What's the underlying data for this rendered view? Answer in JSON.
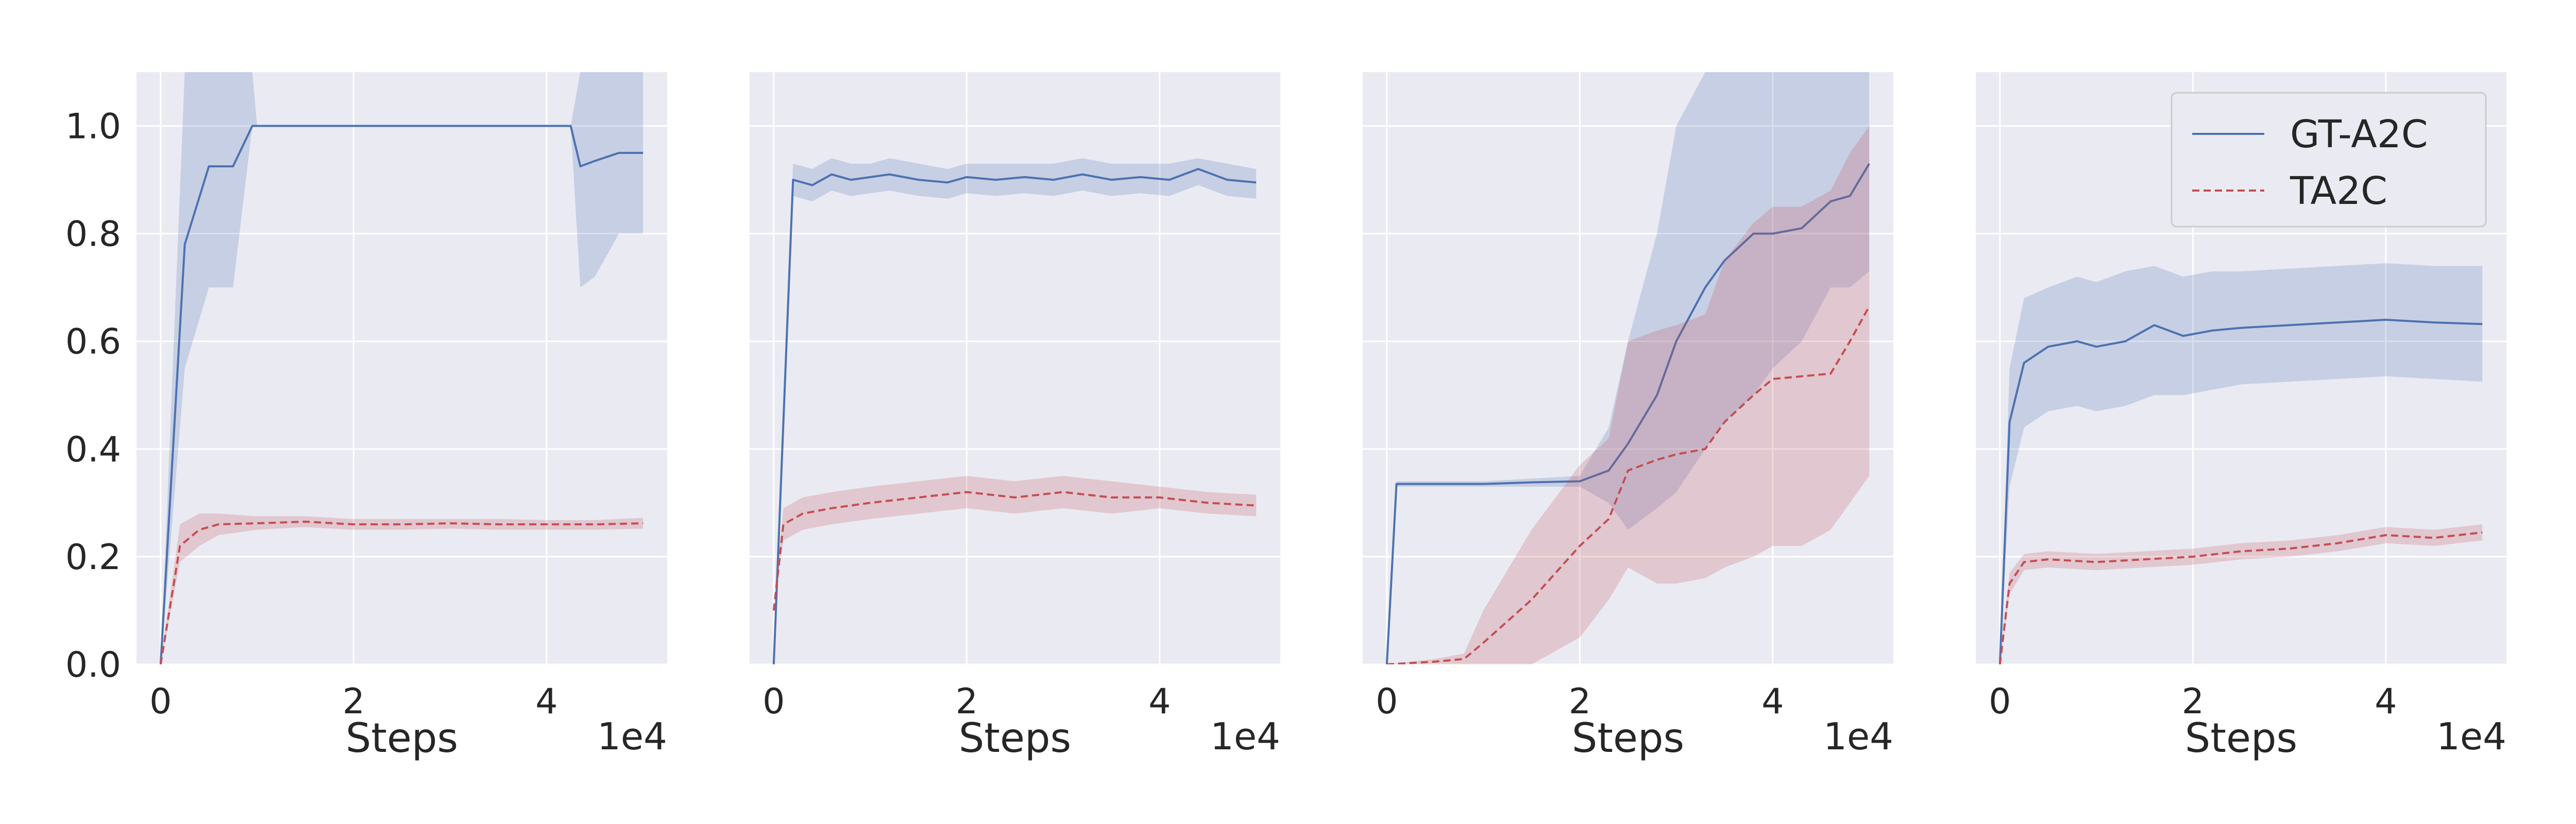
{
  "colors": {
    "axes_bg": "#eaeaf2",
    "grid": "#ffffff",
    "series_gt": "#4c72b0",
    "series_ta": "#c44e52"
  },
  "chart_data": [
    {
      "type": "line",
      "xlabel": "Steps",
      "x_offset_label": "1e4",
      "xlim": [
        -0.25,
        5.25
      ],
      "ylim": [
        0.0,
        1.1
      ],
      "xticks": [
        "0",
        "2",
        "4"
      ],
      "yticks": [
        "0.0",
        "0.2",
        "0.4",
        "0.6",
        "0.8",
        "1.0"
      ],
      "grid": true,
      "series": [
        {
          "name": "GT-A2C",
          "style": "solid",
          "x": [
            0,
            0.25,
            0.5,
            0.75,
            0.95,
            1,
            2,
            3,
            4,
            4.25,
            4.35,
            4.5,
            4.75,
            5
          ],
          "y": [
            0,
            0.78,
            0.925,
            0.925,
            1.0,
            1.0,
            1.0,
            1.0,
            1.0,
            1.0,
            0.925,
            0.935,
            0.95,
            0.95
          ],
          "upper": [
            0,
            1.1,
            1.1,
            1.1,
            1.1,
            1.0,
            1.0,
            1.0,
            1.0,
            1.0,
            1.1,
            1.1,
            1.1,
            1.1
          ],
          "lower": [
            0,
            0.55,
            0.7,
            0.7,
            1.0,
            1.0,
            1.0,
            1.0,
            1.0,
            1.0,
            0.7,
            0.72,
            0.8,
            0.8
          ]
        },
        {
          "name": "TA2C",
          "style": "dashed",
          "x": [
            0,
            0.2,
            0.4,
            0.6,
            1,
            1.5,
            2,
            2.5,
            3,
            3.5,
            4,
            4.5,
            5
          ],
          "y": [
            0,
            0.22,
            0.25,
            0.26,
            0.262,
            0.265,
            0.26,
            0.26,
            0.262,
            0.26,
            0.26,
            0.26,
            0.262
          ],
          "upper": [
            0,
            0.26,
            0.28,
            0.28,
            0.275,
            0.275,
            0.27,
            0.27,
            0.27,
            0.27,
            0.268,
            0.268,
            0.272
          ],
          "lower": [
            0,
            0.19,
            0.22,
            0.24,
            0.25,
            0.255,
            0.25,
            0.25,
            0.252,
            0.25,
            0.25,
            0.25,
            0.252
          ]
        }
      ]
    },
    {
      "type": "line",
      "xlabel": "Steps",
      "x_offset_label": "1e4",
      "xlim": [
        -0.25,
        5.25
      ],
      "ylim": [
        0.0,
        1.1
      ],
      "xticks": [
        "0",
        "2",
        "4"
      ],
      "grid": true,
      "series": [
        {
          "name": "GT-A2C",
          "style": "solid",
          "x": [
            0,
            0.2,
            0.4,
            0.6,
            0.8,
            1,
            1.2,
            1.5,
            1.8,
            2,
            2.3,
            2.6,
            2.9,
            3.2,
            3.5,
            3.8,
            4.1,
            4.4,
            4.7,
            5
          ],
          "y": [
            0,
            0.9,
            0.89,
            0.91,
            0.9,
            0.905,
            0.91,
            0.9,
            0.895,
            0.905,
            0.9,
            0.905,
            0.9,
            0.91,
            0.9,
            0.905,
            0.9,
            0.92,
            0.9,
            0.895
          ],
          "upper": [
            0,
            0.93,
            0.92,
            0.94,
            0.93,
            0.93,
            0.94,
            0.93,
            0.92,
            0.93,
            0.93,
            0.93,
            0.93,
            0.94,
            0.93,
            0.93,
            0.93,
            0.94,
            0.93,
            0.92
          ],
          "lower": [
            0,
            0.87,
            0.86,
            0.88,
            0.87,
            0.875,
            0.88,
            0.87,
            0.865,
            0.875,
            0.87,
            0.875,
            0.87,
            0.88,
            0.87,
            0.875,
            0.87,
            0.89,
            0.87,
            0.865
          ]
        },
        {
          "name": "TA2C",
          "style": "dashed",
          "x": [
            0,
            0.1,
            0.3,
            0.6,
            1,
            1.5,
            2,
            2.5,
            3,
            3.5,
            4,
            4.5,
            5
          ],
          "y": [
            0.1,
            0.26,
            0.28,
            0.29,
            0.3,
            0.31,
            0.32,
            0.31,
            0.32,
            0.31,
            0.31,
            0.3,
            0.295
          ],
          "upper": [
            0.1,
            0.29,
            0.31,
            0.32,
            0.33,
            0.34,
            0.35,
            0.34,
            0.35,
            0.34,
            0.33,
            0.32,
            0.315
          ],
          "lower": [
            0.1,
            0.23,
            0.25,
            0.26,
            0.27,
            0.28,
            0.29,
            0.28,
            0.29,
            0.28,
            0.29,
            0.28,
            0.275
          ]
        }
      ]
    },
    {
      "type": "line",
      "xlabel": "Steps",
      "x_offset_label": "1e4",
      "xlim": [
        -0.25,
        5.25
      ],
      "ylim": [
        0.0,
        1.1
      ],
      "xticks": [
        "0",
        "2",
        "4"
      ],
      "grid": true,
      "series": [
        {
          "name": "GT-A2C",
          "style": "solid",
          "x": [
            0,
            0.1,
            0.5,
            1,
            1.5,
            2,
            2.3,
            2.5,
            2.8,
            3,
            3.3,
            3.5,
            3.8,
            4,
            4.3,
            4.6,
            4.8,
            5
          ],
          "y": [
            0,
            0.335,
            0.335,
            0.335,
            0.338,
            0.34,
            0.36,
            0.41,
            0.5,
            0.6,
            0.7,
            0.75,
            0.8,
            0.8,
            0.81,
            0.86,
            0.87,
            0.93
          ],
          "upper": [
            0,
            0.34,
            0.34,
            0.34,
            0.345,
            0.35,
            0.44,
            0.6,
            0.8,
            1.0,
            1.1,
            1.1,
            1.1,
            1.1,
            1.1,
            1.1,
            1.1,
            1.1
          ],
          "lower": [
            0,
            0.33,
            0.33,
            0.33,
            0.33,
            0.33,
            0.3,
            0.25,
            0.29,
            0.32,
            0.4,
            0.45,
            0.5,
            0.55,
            0.6,
            0.7,
            0.7,
            0.73
          ]
        },
        {
          "name": "TA2C",
          "style": "dashed",
          "x": [
            0,
            0.5,
            0.8,
            1,
            1.5,
            2,
            2.3,
            2.5,
            2.8,
            3,
            3.3,
            3.5,
            3.8,
            4,
            4.3,
            4.6,
            4.8,
            5
          ],
          "y": [
            0,
            0.005,
            0.01,
            0.04,
            0.12,
            0.22,
            0.27,
            0.36,
            0.38,
            0.39,
            0.4,
            0.45,
            0.5,
            0.53,
            0.535,
            0.54,
            0.6,
            0.665
          ],
          "upper": [
            0,
            0.01,
            0.02,
            0.1,
            0.25,
            0.37,
            0.42,
            0.6,
            0.62,
            0.63,
            0.65,
            0.75,
            0.82,
            0.85,
            0.85,
            0.88,
            0.95,
            1.0
          ],
          "lower": [
            0,
            0.0,
            0.0,
            0.0,
            0.0,
            0.05,
            0.12,
            0.18,
            0.15,
            0.15,
            0.16,
            0.18,
            0.2,
            0.22,
            0.22,
            0.25,
            0.3,
            0.35
          ]
        }
      ]
    },
    {
      "type": "line",
      "xlabel": "Steps",
      "x_offset_label": "1e4",
      "xlim": [
        -0.25,
        5.25
      ],
      "ylim": [
        0.0,
        1.1
      ],
      "xticks": [
        "0",
        "2",
        "4"
      ],
      "grid": true,
      "legend": {
        "position": "upper right",
        "entries": [
          "GT-A2C",
          "TA2C"
        ]
      },
      "series": [
        {
          "name": "GT-A2C",
          "style": "solid",
          "x": [
            0,
            0.1,
            0.25,
            0.5,
            0.8,
            1,
            1.3,
            1.6,
            1.9,
            2.2,
            2.5,
            3,
            3.5,
            4,
            4.5,
            5
          ],
          "y": [
            0,
            0.45,
            0.56,
            0.59,
            0.6,
            0.59,
            0.6,
            0.63,
            0.61,
            0.62,
            0.625,
            0.63,
            0.635,
            0.64,
            0.635,
            0.632
          ],
          "upper": [
            0,
            0.55,
            0.68,
            0.7,
            0.72,
            0.71,
            0.73,
            0.74,
            0.72,
            0.73,
            0.73,
            0.735,
            0.74,
            0.745,
            0.74,
            0.74
          ],
          "lower": [
            0,
            0.33,
            0.44,
            0.47,
            0.48,
            0.47,
            0.48,
            0.5,
            0.5,
            0.51,
            0.52,
            0.525,
            0.53,
            0.535,
            0.53,
            0.525
          ]
        },
        {
          "name": "TA2C",
          "style": "dashed",
          "x": [
            0,
            0.1,
            0.25,
            0.5,
            1,
            1.5,
            2,
            2.5,
            3,
            3.5,
            4,
            4.5,
            5
          ],
          "y": [
            0,
            0.15,
            0.19,
            0.195,
            0.19,
            0.195,
            0.2,
            0.21,
            0.215,
            0.225,
            0.24,
            0.235,
            0.245
          ],
          "upper": [
            0,
            0.17,
            0.205,
            0.21,
            0.205,
            0.21,
            0.215,
            0.225,
            0.23,
            0.24,
            0.255,
            0.25,
            0.26
          ],
          "lower": [
            0,
            0.13,
            0.175,
            0.18,
            0.175,
            0.18,
            0.185,
            0.195,
            0.2,
            0.21,
            0.225,
            0.22,
            0.23
          ]
        }
      ]
    }
  ]
}
